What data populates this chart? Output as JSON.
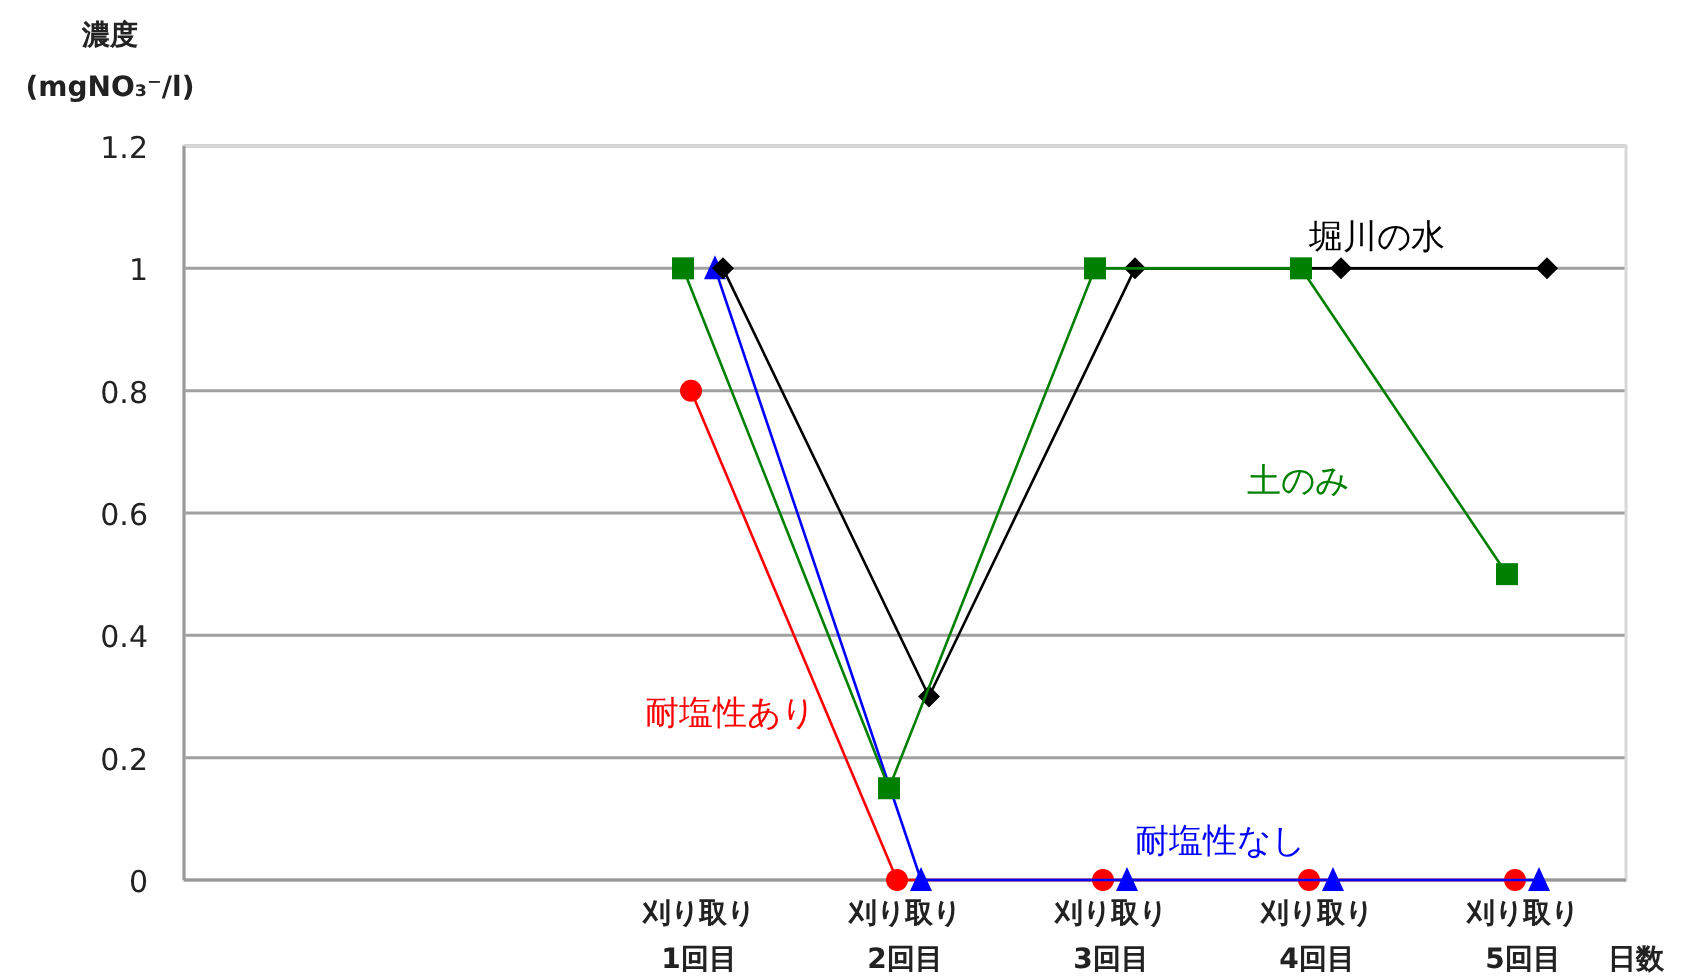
{
  "chart_data": {
    "type": "line",
    "ylabel": "濃度\n(mgNO₃⁻/l)",
    "xlabel": "日数",
    "categories": [
      null,
      null,
      "刈り取り\n1回目",
      "刈り取り\n2回目",
      "刈り取り\n3回目",
      "刈り取り\n4回目",
      "刈り取り\n5回目"
    ],
    "series": [
      {
        "name": "耐塩性あり",
        "color": "#ff0000",
        "marker": "circle",
        "values": [
          null,
          null,
          0.8,
          0,
          0,
          0,
          0
        ]
      },
      {
        "name": "耐塩性なし",
        "color": "#0000ff",
        "marker": "triangle",
        "values": [
          null,
          null,
          1,
          0,
          0,
          0,
          0
        ]
      },
      {
        "name": "堀川の水",
        "color": "#000000",
        "marker": "diamond",
        "values": [
          null,
          null,
          1,
          0.3,
          1,
          1,
          1
        ]
      },
      {
        "name": "土のみ",
        "color": "#008000",
        "marker": "square",
        "values": [
          null,
          null,
          1,
          0.15,
          1,
          1,
          0.5
        ]
      }
    ],
    "ylim": [
      0,
      1.2
    ],
    "yticks": [
      0,
      0.2,
      0.4,
      0.6,
      0.8,
      1,
      1.2
    ],
    "grid": "y",
    "legend": false
  }
}
